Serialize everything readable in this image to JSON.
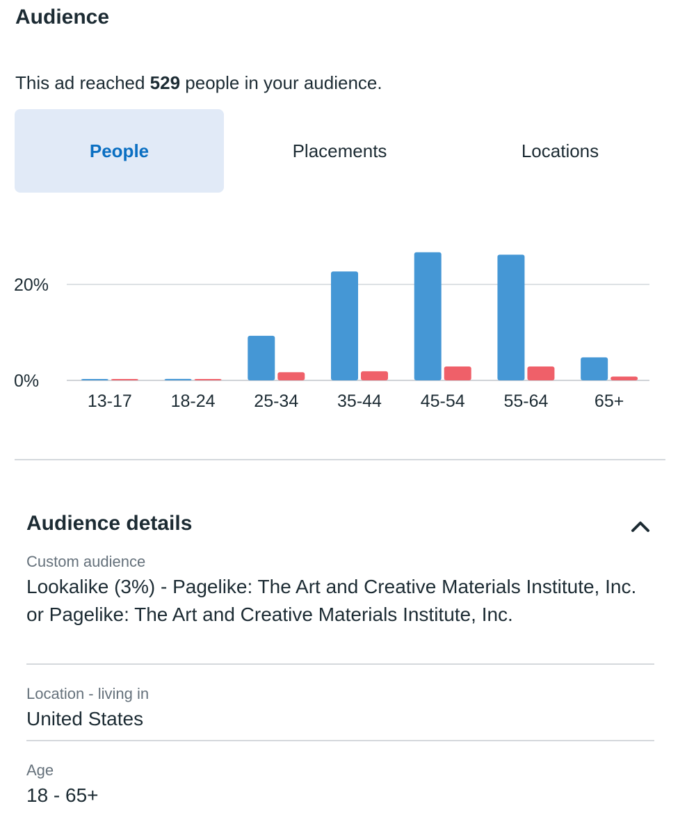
{
  "audience": {
    "title": "Audience",
    "reach_prefix": "This ad reached ",
    "reach_count": "529",
    "reach_suffix": " people in your audience."
  },
  "tabs": [
    {
      "label": "People",
      "active": true
    },
    {
      "label": "Placements",
      "active": false
    },
    {
      "label": "Locations",
      "active": false
    }
  ],
  "colors": {
    "series_a": "#4597d5",
    "series_b": "#ef6069",
    "active_tab_bg": "#e1eaf7",
    "active_tab_text": "#0a6fc2"
  },
  "chart_data": {
    "type": "bar",
    "categories": [
      "13-17",
      "18-24",
      "25-34",
      "35-44",
      "45-54",
      "55-64",
      "65+"
    ],
    "series": [
      {
        "values": [
          0.2,
          0.3,
          9.3,
          22.7,
          26.7,
          26.2,
          4.8
        ]
      },
      {
        "values": [
          0.2,
          0.2,
          1.7,
          1.9,
          2.9,
          2.9,
          0.8
        ]
      }
    ],
    "yticks": [
      "0%",
      "20%"
    ],
    "ytick_values": [
      0,
      20
    ],
    "ylim": [
      0,
      30
    ],
    "grid": true
  },
  "details": {
    "title": "Audience details",
    "collapse_icon": "chevron-up-icon",
    "items": [
      {
        "label": "Custom audience",
        "value": "Lookalike (3%) - Pagelike: The Art and Creative Materials Institute, Inc. or Pagelike: The Art and Creative Materials Institute, Inc."
      },
      {
        "label": "Location - living in",
        "value": "United States"
      },
      {
        "label": "Age",
        "value": "18 - 65+"
      }
    ]
  }
}
